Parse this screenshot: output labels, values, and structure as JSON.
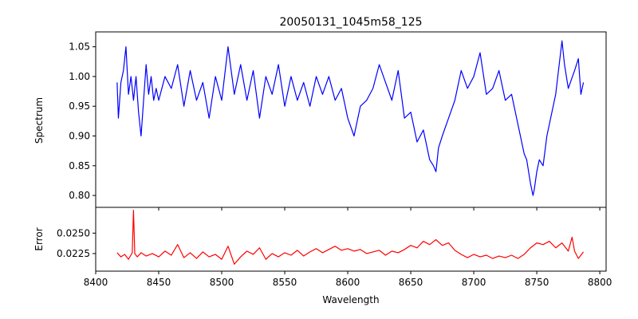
{
  "chart_data": [
    {
      "type": "line",
      "title": "20050131_1045m58_125",
      "xlabel": "",
      "ylabel": "Spectrum",
      "xlim": [
        8400,
        8805
      ],
      "ylim": [
        0.78,
        1.075
      ],
      "xticks": [
        8400,
        8450,
        8500,
        8550,
        8600,
        8650,
        8700,
        8750,
        8800
      ],
      "yticks": [
        0.8,
        0.85,
        0.9,
        0.95,
        1.0,
        1.05
      ],
      "ytick_labels": [
        "0.80",
        "0.85",
        "0.90",
        "0.95",
        "1.00",
        "1.05"
      ],
      "show_xtick_labels": false,
      "color": "#0000ff",
      "x": [
        8417,
        8418,
        8420,
        8422,
        8424,
        8426,
        8428,
        8430,
        8432,
        8434,
        8436,
        8438,
        8440,
        8442,
        8444,
        8446,
        8448,
        8450,
        8455,
        8460,
        8465,
        8470,
        8475,
        8480,
        8485,
        8490,
        8495,
        8500,
        8505,
        8510,
        8515,
        8520,
        8525,
        8530,
        8535,
        8540,
        8545,
        8550,
        8555,
        8560,
        8565,
        8570,
        8575,
        8580,
        8585,
        8590,
        8595,
        8600,
        8605,
        8610,
        8615,
        8620,
        8625,
        8630,
        8635,
        8640,
        8645,
        8650,
        8655,
        8660,
        8665,
        8668,
        8670,
        8672,
        8675,
        8680,
        8685,
        8690,
        8695,
        8700,
        8705,
        8710,
        8715,
        8720,
        8725,
        8730,
        8735,
        8740,
        8742,
        8745,
        8747,
        8748,
        8750,
        8752,
        8755,
        8758,
        8760,
        8765,
        8770,
        8772,
        8775,
        8780,
        8783,
        8785,
        8787
      ],
      "values": [
        0.99,
        0.93,
        0.99,
        1.01,
        1.05,
        0.97,
        1.0,
        0.96,
        1.0,
        0.94,
        0.9,
        0.96,
        1.02,
        0.97,
        1.0,
        0.96,
        0.98,
        0.96,
        1.0,
        0.98,
        1.02,
        0.95,
        1.01,
        0.96,
        0.99,
        0.93,
        1.0,
        0.96,
        1.05,
        0.97,
        1.02,
        0.96,
        1.01,
        0.93,
        1.0,
        0.97,
        1.02,
        0.95,
        1.0,
        0.96,
        0.99,
        0.95,
        1.0,
        0.97,
        1.0,
        0.96,
        0.98,
        0.93,
        0.9,
        0.95,
        0.96,
        0.98,
        1.02,
        0.99,
        0.96,
        1.01,
        0.93,
        0.94,
        0.89,
        0.91,
        0.86,
        0.85,
        0.84,
        0.88,
        0.9,
        0.93,
        0.96,
        1.01,
        0.98,
        1.0,
        1.04,
        0.97,
        0.98,
        1.01,
        0.96,
        0.97,
        0.92,
        0.87,
        0.86,
        0.82,
        0.8,
        0.81,
        0.84,
        0.86,
        0.85,
        0.9,
        0.92,
        0.97,
        1.06,
        1.02,
        0.98,
        1.01,
        1.03,
        0.97,
        0.99
      ]
    },
    {
      "type": "line",
      "title": "",
      "xlabel": "Wavelength",
      "ylabel": "Error",
      "xlim": [
        8400,
        8805
      ],
      "ylim": [
        0.02035,
        0.02815
      ],
      "xticks": [
        8400,
        8450,
        8500,
        8550,
        8600,
        8650,
        8700,
        8750,
        8800
      ],
      "xtick_labels": [
        "8400",
        "8450",
        "8500",
        "8550",
        "8600",
        "8650",
        "8700",
        "8750",
        "8800"
      ],
      "yticks": [
        0.0225,
        0.025
      ],
      "ytick_labels": [
        "0.0225",
        "0.0250"
      ],
      "color": "#ff0000",
      "x": [
        8417,
        8420,
        8423,
        8426,
        8429,
        8430,
        8431,
        8433,
        8436,
        8440,
        8445,
        8450,
        8455,
        8460,
        8465,
        8470,
        8475,
        8480,
        8485,
        8490,
        8495,
        8500,
        8505,
        8510,
        8515,
        8520,
        8525,
        8530,
        8535,
        8540,
        8545,
        8550,
        8555,
        8560,
        8565,
        8570,
        8575,
        8580,
        8585,
        8590,
        8595,
        8600,
        8605,
        8610,
        8615,
        8620,
        8625,
        8630,
        8635,
        8640,
        8645,
        8650,
        8655,
        8660,
        8665,
        8670,
        8675,
        8680,
        8685,
        8690,
        8695,
        8700,
        8705,
        8710,
        8715,
        8720,
        8725,
        8730,
        8735,
        8740,
        8745,
        8750,
        8755,
        8760,
        8765,
        8770,
        8775,
        8778,
        8780,
        8783,
        8787
      ],
      "values": [
        0.0226,
        0.0221,
        0.0224,
        0.0218,
        0.0226,
        0.0278,
        0.0225,
        0.0221,
        0.0226,
        0.0222,
        0.0225,
        0.0221,
        0.0228,
        0.0223,
        0.0236,
        0.022,
        0.0226,
        0.0219,
        0.0227,
        0.0221,
        0.0224,
        0.0218,
        0.0234,
        0.0212,
        0.0221,
        0.0228,
        0.0224,
        0.0232,
        0.0218,
        0.0225,
        0.0221,
        0.0226,
        0.0223,
        0.0229,
        0.0222,
        0.0227,
        0.0231,
        0.0226,
        0.023,
        0.0234,
        0.0229,
        0.0231,
        0.0228,
        0.023,
        0.0225,
        0.0227,
        0.0229,
        0.0223,
        0.0228,
        0.0226,
        0.023,
        0.0235,
        0.0232,
        0.024,
        0.0236,
        0.0242,
        0.0235,
        0.0238,
        0.0229,
        0.0224,
        0.022,
        0.0224,
        0.0221,
        0.0223,
        0.0219,
        0.0222,
        0.022,
        0.0223,
        0.0219,
        0.0224,
        0.0232,
        0.0238,
        0.0236,
        0.024,
        0.0232,
        0.0238,
        0.0228,
        0.0245,
        0.0228,
        0.0219,
        0.0227
      ]
    }
  ]
}
